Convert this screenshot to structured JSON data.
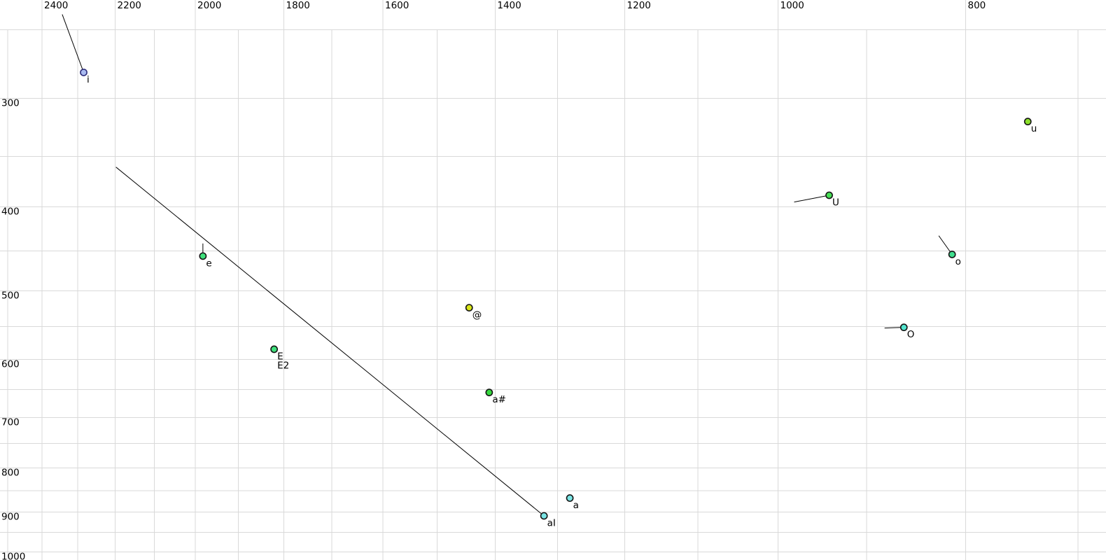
{
  "colors": {
    "background": "#ffffff",
    "gridline": "#d9d9d9",
    "axis_text": "#000000",
    "glide_line": "#000000"
  },
  "chart_data": {
    "type": "scatter",
    "title": "",
    "xlabel": "",
    "ylabel": "",
    "x_axis": {
      "unit_values_hz": true,
      "scale": "log",
      "reversed": true,
      "min": 677,
      "max": 2523,
      "gridlines": [
        2500,
        2400,
        2300,
        2200,
        2100,
        2000,
        1900,
        1800,
        1700,
        1600,
        1500,
        1400,
        1300,
        1200,
        1100,
        1000,
        900,
        800,
        700
      ],
      "labeled_ticks": [
        "2400",
        "2200",
        "2000",
        "1800",
        "1600",
        "1400",
        "1200",
        "1000",
        "800"
      ],
      "labeled_tick_values": [
        2400,
        2200,
        2000,
        1800,
        1600,
        1400,
        1200,
        1000,
        800
      ]
    },
    "y_axis": {
      "scale": "log",
      "min": 231,
      "max": 1022,
      "gridlines": [
        250,
        300,
        350,
        400,
        450,
        500,
        550,
        600,
        650,
        700,
        750,
        800,
        850,
        900,
        950,
        1000
      ],
      "labeled_ticks": [
        "300",
        "400",
        "500",
        "600",
        "700",
        "800",
        "900",
        "1000"
      ],
      "labeled_tick_values": [
        300,
        400,
        500,
        600,
        700,
        800,
        900,
        1000
      ],
      "unlabeled_vertical_gridlines_start_at_f1": 250
    },
    "legend": null,
    "grid": true,
    "points": [
      {
        "label_lines": [
          "i"
        ],
        "f1": 280,
        "f2": 2284,
        "fill": "#a9baf0",
        "stroke": "#2e2e7a",
        "glide": {
          "f1": 240,
          "f2": 2343
        }
      },
      {
        "label_lines": [
          "e"
        ],
        "f1": 456,
        "f2": 1982,
        "fill": "#3fe07c",
        "stroke": "#141414",
        "glide": {
          "f1": 441,
          "f2": 1982
        }
      },
      {
        "label_lines": [
          "E",
          "E2"
        ],
        "f1": 584,
        "f2": 1821,
        "fill": "#3fe07c",
        "stroke": "#141414",
        "glide": null
      },
      {
        "label_lines": [
          "@"
        ],
        "f1": 523,
        "f2": 1444,
        "fill": "#d9e619",
        "stroke": "#141414",
        "glide": null
      },
      {
        "label_lines": [
          "a#"
        ],
        "f1": 655,
        "f2": 1410,
        "fill": "#35d93e",
        "stroke": "#141414",
        "glide": null
      },
      {
        "label_lines": [
          "aI"
        ],
        "f1": 909,
        "f2": 1321,
        "fill": "#7ae4e4",
        "stroke": "#141414",
        "glide": {
          "f1": 360,
          "f2": 2198
        }
      },
      {
        "label_lines": [
          "a"
        ],
        "f1": 867,
        "f2": 1281,
        "fill": "#7ae4e4",
        "stroke": "#141414",
        "glide": null
      },
      {
        "label_lines": [
          "U"
        ],
        "f1": 388,
        "f2": 941,
        "fill": "#47df55",
        "stroke": "#141414",
        "glide": {
          "f1": 395,
          "f2": 981
        }
      },
      {
        "label_lines": [
          "O"
        ],
        "f1": 551,
        "f2": 861,
        "fill": "#52e5cf",
        "stroke": "#141414",
        "glide": {
          "f1": 552,
          "f2": 881
        }
      },
      {
        "label_lines": [
          "o"
        ],
        "f1": 454,
        "f2": 813,
        "fill": "#40df8e",
        "stroke": "#141414",
        "glide": {
          "f1": 432,
          "f2": 826
        }
      },
      {
        "label_lines": [
          "u"
        ],
        "f1": 319,
        "f2": 743,
        "fill": "#8ce02a",
        "stroke": "#141414",
        "glide": null
      }
    ]
  }
}
